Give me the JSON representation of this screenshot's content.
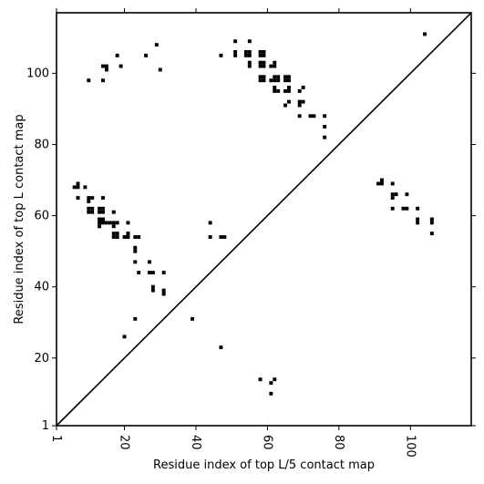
{
  "chart_data": {
    "type": "scatter",
    "title": "",
    "xlabel": "Residue index of top L/5 contact map",
    "ylabel": "Residue index of top L contact map",
    "xlim": [
      1,
      117
    ],
    "ylim": [
      1,
      117
    ],
    "x_ticks": [
      1,
      20,
      40,
      60,
      80,
      100
    ],
    "y_ticks": [
      1,
      20,
      40,
      60,
      80,
      100
    ],
    "x_tick_labels": [
      "1",
      "20",
      "40",
      "60",
      "80",
      "100"
    ],
    "y_tick_labels": [
      "1",
      "20",
      "40",
      "60",
      "80",
      "100"
    ],
    "grid": false,
    "diagonal_line": true,
    "marker": "square",
    "color": "#000000",
    "series": [
      {
        "values": [
          [
            104,
            111
          ],
          [
            29,
            108
          ],
          [
            51,
            109
          ],
          [
            55,
            109
          ],
          [
            18,
            105
          ],
          [
            26,
            105
          ],
          [
            47,
            105
          ],
          [
            51,
            105
          ],
          [
            51,
            106
          ],
          [
            54,
            105
          ],
          [
            54,
            106
          ],
          [
            55,
            105
          ],
          [
            55,
            106
          ],
          [
            58,
            105
          ],
          [
            58,
            106
          ],
          [
            59,
            105
          ],
          [
            59,
            106
          ],
          [
            14,
            102
          ],
          [
            15,
            102
          ],
          [
            15,
            101
          ],
          [
            19,
            102
          ],
          [
            30,
            101
          ],
          [
            55,
            102
          ],
          [
            55,
            103
          ],
          [
            58,
            102
          ],
          [
            58,
            103
          ],
          [
            59,
            102
          ],
          [
            59,
            103
          ],
          [
            61,
            102
          ],
          [
            62,
            102
          ],
          [
            62,
            103
          ],
          [
            10,
            98
          ],
          [
            14,
            98
          ],
          [
            58,
            98
          ],
          [
            58,
            99
          ],
          [
            59,
            98
          ],
          [
            59,
            99
          ],
          [
            61,
            98
          ],
          [
            62,
            98
          ],
          [
            62,
            99
          ],
          [
            63,
            98
          ],
          [
            63,
            99
          ],
          [
            65,
            98
          ],
          [
            65,
            99
          ],
          [
            66,
            98
          ],
          [
            66,
            99
          ],
          [
            62,
            96
          ],
          [
            62,
            95
          ],
          [
            63,
            95
          ],
          [
            65,
            95
          ],
          [
            66,
            95
          ],
          [
            66,
            96
          ],
          [
            69,
            95
          ],
          [
            70,
            96
          ],
          [
            65,
            91
          ],
          [
            66,
            92
          ],
          [
            69,
            91
          ],
          [
            69,
            92
          ],
          [
            70,
            92
          ],
          [
            69,
            88
          ],
          [
            72,
            88
          ],
          [
            73,
            88
          ],
          [
            76,
            88
          ],
          [
            76,
            85
          ],
          [
            76,
            82
          ],
          [
            6,
            68
          ],
          [
            7,
            68
          ],
          [
            7,
            69
          ],
          [
            9,
            68
          ],
          [
            10,
            65
          ],
          [
            11,
            65
          ],
          [
            7,
            65
          ],
          [
            14,
            65
          ],
          [
            10,
            64
          ],
          [
            10,
            62
          ],
          [
            11,
            62
          ],
          [
            10,
            61
          ],
          [
            11,
            61
          ],
          [
            13,
            62
          ],
          [
            14,
            62
          ],
          [
            13,
            61
          ],
          [
            14,
            61
          ],
          [
            17,
            61
          ],
          [
            13,
            59
          ],
          [
            14,
            59
          ],
          [
            14,
            58
          ],
          [
            15,
            58
          ],
          [
            16,
            58
          ],
          [
            17,
            58
          ],
          [
            18,
            58
          ],
          [
            21,
            58
          ],
          [
            13,
            58
          ],
          [
            13,
            57
          ],
          [
            17,
            57
          ],
          [
            17,
            55
          ],
          [
            18,
            55
          ],
          [
            17,
            54
          ],
          [
            18,
            54
          ],
          [
            20,
            54
          ],
          [
            21,
            54
          ],
          [
            21,
            55
          ],
          [
            23,
            54
          ],
          [
            24,
            54
          ],
          [
            23,
            51
          ],
          [
            23,
            50
          ],
          [
            23,
            47
          ],
          [
            27,
            47
          ],
          [
            24,
            44
          ],
          [
            27,
            44
          ],
          [
            28,
            44
          ],
          [
            31,
            44
          ],
          [
            28,
            40
          ],
          [
            28,
            39
          ],
          [
            31,
            39
          ],
          [
            31,
            38
          ],
          [
            23,
            31
          ],
          [
            39,
            31
          ],
          [
            20,
            26
          ],
          [
            47,
            23
          ],
          [
            44,
            58
          ],
          [
            44,
            54
          ],
          [
            47,
            54
          ],
          [
            48,
            54
          ],
          [
            91,
            69
          ],
          [
            92,
            69
          ],
          [
            92,
            70
          ],
          [
            95,
            69
          ],
          [
            95,
            66
          ],
          [
            96,
            66
          ],
          [
            95,
            65
          ],
          [
            99,
            66
          ],
          [
            95,
            62
          ],
          [
            98,
            62
          ],
          [
            99,
            62
          ],
          [
            102,
            62
          ],
          [
            102,
            59
          ],
          [
            102,
            58
          ],
          [
            106,
            59
          ],
          [
            106,
            58
          ],
          [
            106,
            55
          ],
          [
            58,
            14
          ],
          [
            61,
            13
          ],
          [
            62,
            14
          ],
          [
            61,
            10
          ]
        ]
      }
    ]
  }
}
